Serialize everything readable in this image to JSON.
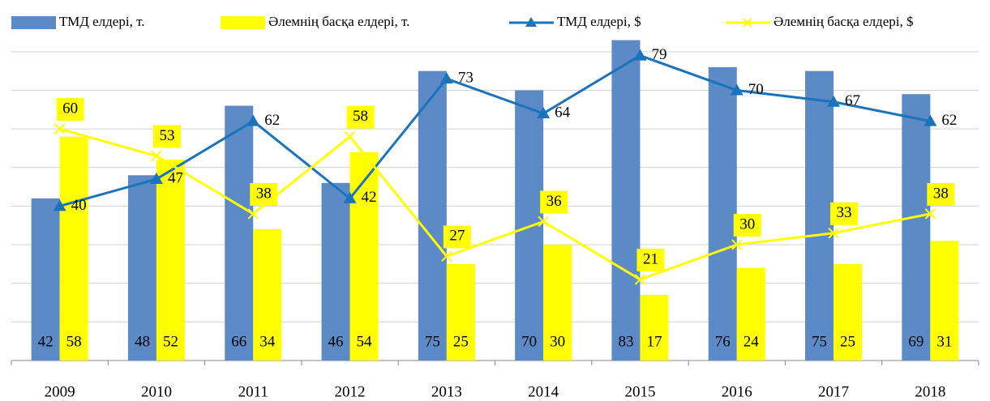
{
  "chart_data": {
    "type": "bar",
    "categories": [
      "2009",
      "2010",
      "2011",
      "2012",
      "2013",
      "2014",
      "2015",
      "2016",
      "2017",
      "2018"
    ],
    "series": [
      {
        "name": "ТМД елдері, т.",
        "type": "bar",
        "color": "#5b8ac6",
        "values": [
          42,
          48,
          66,
          46,
          75,
          70,
          83,
          76,
          75,
          69
        ]
      },
      {
        "name": "Әлемнің басқа елдері, т.",
        "type": "bar",
        "color": "#ffff00",
        "values": [
          58,
          52,
          34,
          54,
          25,
          30,
          17,
          24,
          25,
          31
        ]
      },
      {
        "name": "ТМД елдері, $",
        "type": "line",
        "color": "#1a73bd",
        "values": [
          40,
          47,
          62,
          42,
          73,
          64,
          79,
          70,
          67,
          62
        ]
      },
      {
        "name": "Әлемнің басқа елдері, $",
        "type": "line",
        "color": "#ffff00",
        "values": [
          60,
          53,
          38,
          58,
          27,
          36,
          21,
          30,
          33,
          38
        ]
      }
    ],
    "ylim": [
      0,
      85
    ],
    "yticks": [
      0,
      10,
      20,
      30,
      40,
      50,
      60,
      70,
      80
    ],
    "grid": true,
    "legend": "top"
  }
}
